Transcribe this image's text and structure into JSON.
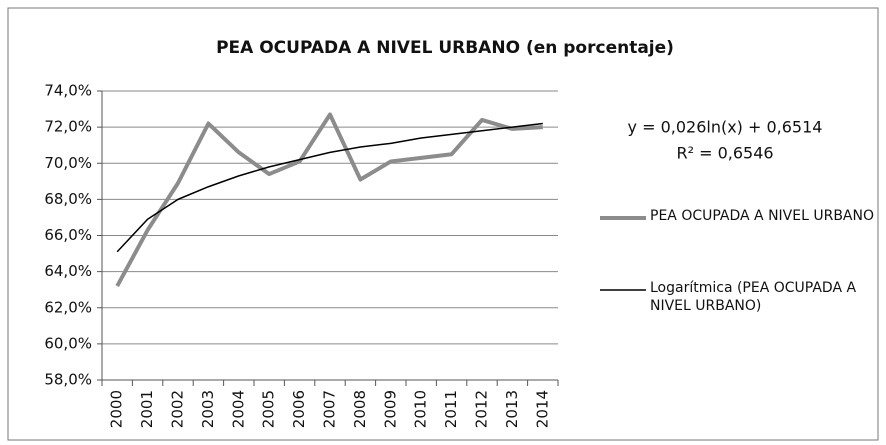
{
  "chart_data": {
    "type": "line",
    "title": "PEA OCUPADA A NIVEL URBANO (en porcentaje)",
    "categories": [
      "2000",
      "2001",
      "2002",
      "2003",
      "2004",
      "2005",
      "2006",
      "2007",
      "2008",
      "2009",
      "2010",
      "2011",
      "2012",
      "2013",
      "2014"
    ],
    "series": [
      {
        "name": "PEA OCUPADA A NIVEL URBANO",
        "color": "#8c8c8c",
        "values": [
          63.2,
          66.3,
          68.9,
          72.2,
          70.6,
          69.4,
          70.1,
          72.7,
          69.1,
          70.1,
          70.3,
          70.5,
          72.4,
          71.9,
          72.0
        ]
      },
      {
        "name": "Logarítmica (PEA OCUPADA A NIVEL URBANO)",
        "color": "#000000",
        "values": [
          65.1,
          66.9,
          68.0,
          68.7,
          69.3,
          69.8,
          70.2,
          70.6,
          70.9,
          71.1,
          71.4,
          71.6,
          71.8,
          72.0,
          72.2
        ]
      }
    ],
    "annotations": [
      "y = 0,026ln(x) + 0,6514",
      "R² = 0,6546"
    ],
    "ylim": [
      58,
      74
    ],
    "yticks": [
      {
        "value": 58,
        "label": "58,0%"
      },
      {
        "value": 60,
        "label": "60,0%"
      },
      {
        "value": 62,
        "label": "62,0%"
      },
      {
        "value": 64,
        "label": "64,0%"
      },
      {
        "value": 66,
        "label": "66,0%"
      },
      {
        "value": 68,
        "label": "68,0%"
      },
      {
        "value": 70,
        "label": "70,0%"
      },
      {
        "value": 72,
        "label": "72,0%"
      },
      {
        "value": 74,
        "label": "74,0%"
      }
    ],
    "grid": true,
    "legend": "right"
  }
}
